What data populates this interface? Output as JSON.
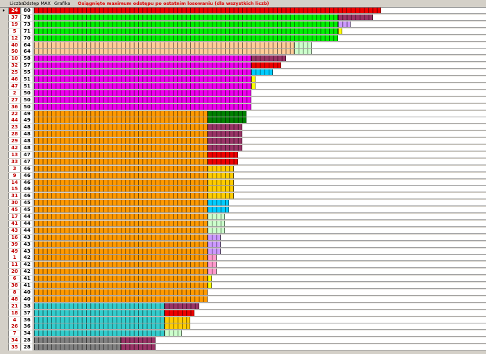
{
  "header": {
    "col_number": "Liczba",
    "col_gap": "Odstęp MAX",
    "col_graph": "Grafika",
    "title": "Osiągnięte maximum odstępu po ostatnim losowaniu (dla wszystkich liczb)"
  },
  "colors": {
    "red": "#ee0000",
    "green": "#00ee00",
    "peach": "#ffcc99",
    "magenta": "#ee00ee",
    "orange": "#ff9900",
    "teal": "#33cccc",
    "gray": "#808080",
    "maroon": "#993366",
    "lavender": "#cc99ff",
    "yellow": "#ffff00",
    "lightgreen": "#ccffcc",
    "skyblue": "#00ccff",
    "darkgreen": "#008000",
    "gold": "#ffcc00",
    "pink": "#ff99cc"
  },
  "selected_row": 0,
  "rows": [
    {
      "number": "24",
      "gap": "80",
      "segments": [
        [
          "red",
          80
        ]
      ]
    },
    {
      "number": "37",
      "gap": "78",
      "segments": [
        [
          "green",
          70
        ],
        [
          "maroon",
          8
        ]
      ]
    },
    {
      "number": "19",
      "gap": "73",
      "segments": [
        [
          "green",
          70
        ],
        [
          "lavender",
          3
        ]
      ]
    },
    {
      "number": "5",
      "gap": "71",
      "segments": [
        [
          "green",
          70
        ],
        [
          "yellow",
          1
        ]
      ]
    },
    {
      "number": "12",
      "gap": "70",
      "segments": [
        [
          "green",
          70
        ]
      ]
    },
    {
      "number": "40",
      "gap": "64",
      "segments": [
        [
          "peach",
          60
        ],
        [
          "lightgreen",
          4
        ]
      ]
    },
    {
      "number": "50",
      "gap": "64",
      "segments": [
        [
          "peach",
          60
        ],
        [
          "lightgreen",
          4
        ]
      ]
    },
    {
      "number": "10",
      "gap": "58",
      "segments": [
        [
          "magenta",
          50
        ],
        [
          "maroon",
          8
        ]
      ]
    },
    {
      "number": "32",
      "gap": "57",
      "segments": [
        [
          "magenta",
          50
        ],
        [
          "red",
          7
        ]
      ]
    },
    {
      "number": "25",
      "gap": "55",
      "segments": [
        [
          "magenta",
          50
        ],
        [
          "skyblue",
          5
        ]
      ]
    },
    {
      "number": "46",
      "gap": "51",
      "segments": [
        [
          "magenta",
          50
        ],
        [
          "yellow",
          1
        ]
      ]
    },
    {
      "number": "47",
      "gap": "51",
      "segments": [
        [
          "magenta",
          50
        ],
        [
          "yellow",
          1
        ]
      ]
    },
    {
      "number": "2",
      "gap": "50",
      "segments": [
        [
          "magenta",
          50
        ]
      ]
    },
    {
      "number": "27",
      "gap": "50",
      "segments": [
        [
          "magenta",
          50
        ]
      ]
    },
    {
      "number": "36",
      "gap": "50",
      "segments": [
        [
          "magenta",
          50
        ]
      ]
    },
    {
      "number": "22",
      "gap": "49",
      "segments": [
        [
          "orange",
          40
        ],
        [
          "darkgreen",
          9
        ]
      ]
    },
    {
      "number": "44",
      "gap": "49",
      "segments": [
        [
          "orange",
          40
        ],
        [
          "darkgreen",
          9
        ]
      ]
    },
    {
      "number": "23",
      "gap": "48",
      "segments": [
        [
          "orange",
          40
        ],
        [
          "maroon",
          8
        ]
      ]
    },
    {
      "number": "28",
      "gap": "48",
      "segments": [
        [
          "orange",
          40
        ],
        [
          "maroon",
          8
        ]
      ]
    },
    {
      "number": "29",
      "gap": "48",
      "segments": [
        [
          "orange",
          40
        ],
        [
          "maroon",
          8
        ]
      ]
    },
    {
      "number": "42",
      "gap": "48",
      "segments": [
        [
          "orange",
          40
        ],
        [
          "maroon",
          8
        ]
      ]
    },
    {
      "number": "13",
      "gap": "47",
      "segments": [
        [
          "orange",
          40
        ],
        [
          "red",
          7
        ]
      ]
    },
    {
      "number": "33",
      "gap": "47",
      "segments": [
        [
          "orange",
          40
        ],
        [
          "red",
          7
        ]
      ]
    },
    {
      "number": "3",
      "gap": "46",
      "segments": [
        [
          "orange",
          40
        ],
        [
          "gold",
          6
        ]
      ]
    },
    {
      "number": "9",
      "gap": "46",
      "segments": [
        [
          "orange",
          40
        ],
        [
          "gold",
          6
        ]
      ]
    },
    {
      "number": "14",
      "gap": "46",
      "segments": [
        [
          "orange",
          40
        ],
        [
          "gold",
          6
        ]
      ]
    },
    {
      "number": "15",
      "gap": "46",
      "segments": [
        [
          "orange",
          40
        ],
        [
          "gold",
          6
        ]
      ]
    },
    {
      "number": "31",
      "gap": "46",
      "segments": [
        [
          "orange",
          40
        ],
        [
          "gold",
          6
        ]
      ]
    },
    {
      "number": "30",
      "gap": "45",
      "segments": [
        [
          "orange",
          40
        ],
        [
          "skyblue",
          5
        ]
      ]
    },
    {
      "number": "45",
      "gap": "45",
      "segments": [
        [
          "orange",
          40
        ],
        [
          "skyblue",
          5
        ]
      ]
    },
    {
      "number": "17",
      "gap": "44",
      "segments": [
        [
          "orange",
          40
        ],
        [
          "lightgreen",
          4
        ]
      ]
    },
    {
      "number": "41",
      "gap": "44",
      "segments": [
        [
          "orange",
          40
        ],
        [
          "lightgreen",
          4
        ]
      ]
    },
    {
      "number": "43",
      "gap": "44",
      "segments": [
        [
          "orange",
          40
        ],
        [
          "lightgreen",
          4
        ]
      ]
    },
    {
      "number": "16",
      "gap": "43",
      "segments": [
        [
          "orange",
          40
        ],
        [
          "lavender",
          3
        ]
      ]
    },
    {
      "number": "39",
      "gap": "43",
      "segments": [
        [
          "orange",
          40
        ],
        [
          "lavender",
          3
        ]
      ]
    },
    {
      "number": "49",
      "gap": "43",
      "segments": [
        [
          "orange",
          40
        ],
        [
          "lavender",
          3
        ]
      ]
    },
    {
      "number": "1",
      "gap": "42",
      "segments": [
        [
          "orange",
          40
        ],
        [
          "pink",
          2
        ]
      ]
    },
    {
      "number": "11",
      "gap": "42",
      "segments": [
        [
          "orange",
          40
        ],
        [
          "pink",
          2
        ]
      ]
    },
    {
      "number": "20",
      "gap": "42",
      "segments": [
        [
          "orange",
          40
        ],
        [
          "pink",
          2
        ]
      ]
    },
    {
      "number": "6",
      "gap": "41",
      "segments": [
        [
          "orange",
          40
        ],
        [
          "yellow",
          1
        ]
      ]
    },
    {
      "number": "38",
      "gap": "41",
      "segments": [
        [
          "orange",
          40
        ],
        [
          "yellow",
          1
        ]
      ]
    },
    {
      "number": "8",
      "gap": "40",
      "segments": [
        [
          "orange",
          40
        ]
      ]
    },
    {
      "number": "48",
      "gap": "40",
      "segments": [
        [
          "orange",
          40
        ]
      ]
    },
    {
      "number": "21",
      "gap": "38",
      "segments": [
        [
          "teal",
          30
        ],
        [
          "maroon",
          8
        ]
      ]
    },
    {
      "number": "18",
      "gap": "37",
      "segments": [
        [
          "teal",
          30
        ],
        [
          "red",
          7
        ]
      ]
    },
    {
      "number": "4",
      "gap": "36",
      "segments": [
        [
          "teal",
          30
        ],
        [
          "gold",
          6
        ]
      ]
    },
    {
      "number": "26",
      "gap": "36",
      "segments": [
        [
          "teal",
          30
        ],
        [
          "gold",
          6
        ]
      ]
    },
    {
      "number": "7",
      "gap": "34",
      "segments": [
        [
          "teal",
          30
        ],
        [
          "lightgreen",
          4
        ]
      ]
    },
    {
      "number": "34",
      "gap": "28",
      "segments": [
        [
          "gray",
          20
        ],
        [
          "maroon",
          8
        ]
      ]
    },
    {
      "number": "35",
      "gap": "28",
      "segments": [
        [
          "gray",
          20
        ],
        [
          "maroon",
          8
        ]
      ]
    }
  ]
}
